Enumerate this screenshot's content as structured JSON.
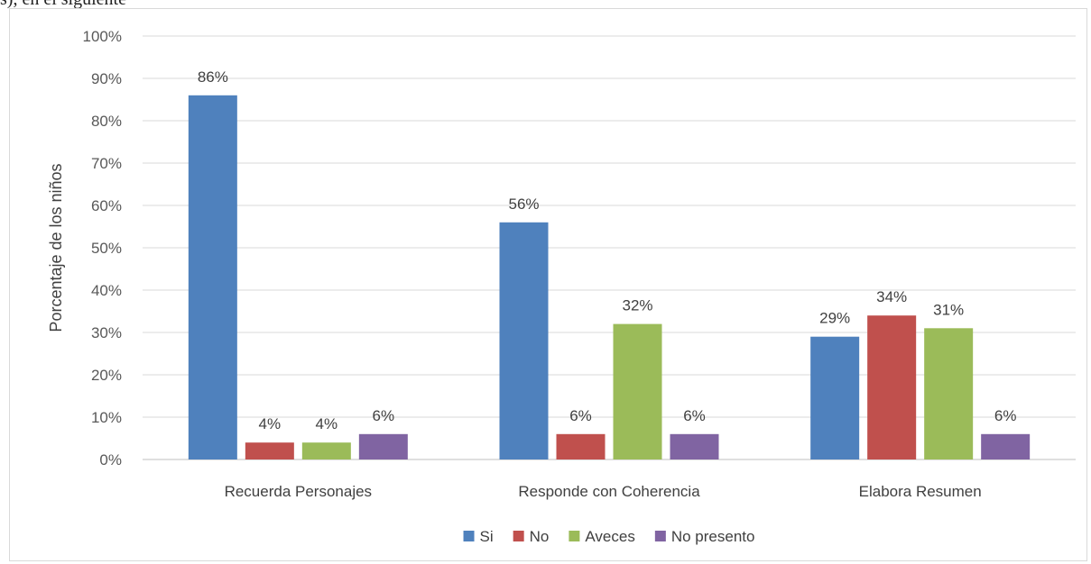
{
  "fragment_text": "s), en el siguiente",
  "chart_data": {
    "type": "bar",
    "title": "",
    "xlabel": "",
    "ylabel": "Porcentaje de los niños",
    "ylim": [
      0,
      100
    ],
    "yticks": [
      "0%",
      "10%",
      "20%",
      "30%",
      "40%",
      "50%",
      "60%",
      "70%",
      "80%",
      "90%",
      "100%"
    ],
    "grid": true,
    "legend_position": "bottom",
    "categories": [
      "Recuerda Personajes",
      "Responde con Coherencia",
      "Elabora Resumen"
    ],
    "series": [
      {
        "name": "Si",
        "color": "#4f81bd",
        "values": [
          86,
          56,
          29
        ],
        "labels": [
          "86%",
          "56%",
          "29%"
        ]
      },
      {
        "name": "No",
        "color": "#c0504d",
        "values": [
          4,
          6,
          34
        ],
        "labels": [
          "4%",
          "6%",
          "34%"
        ]
      },
      {
        "name": "Aveces",
        "color": "#9bbb59",
        "values": [
          4,
          32,
          31
        ],
        "labels": [
          "4%",
          "32%",
          "31%"
        ]
      },
      {
        "name": "No presento",
        "color": "#8064a2",
        "values": [
          6,
          6,
          6
        ],
        "labels": [
          "6%",
          "6%",
          "6%"
        ]
      }
    ]
  }
}
